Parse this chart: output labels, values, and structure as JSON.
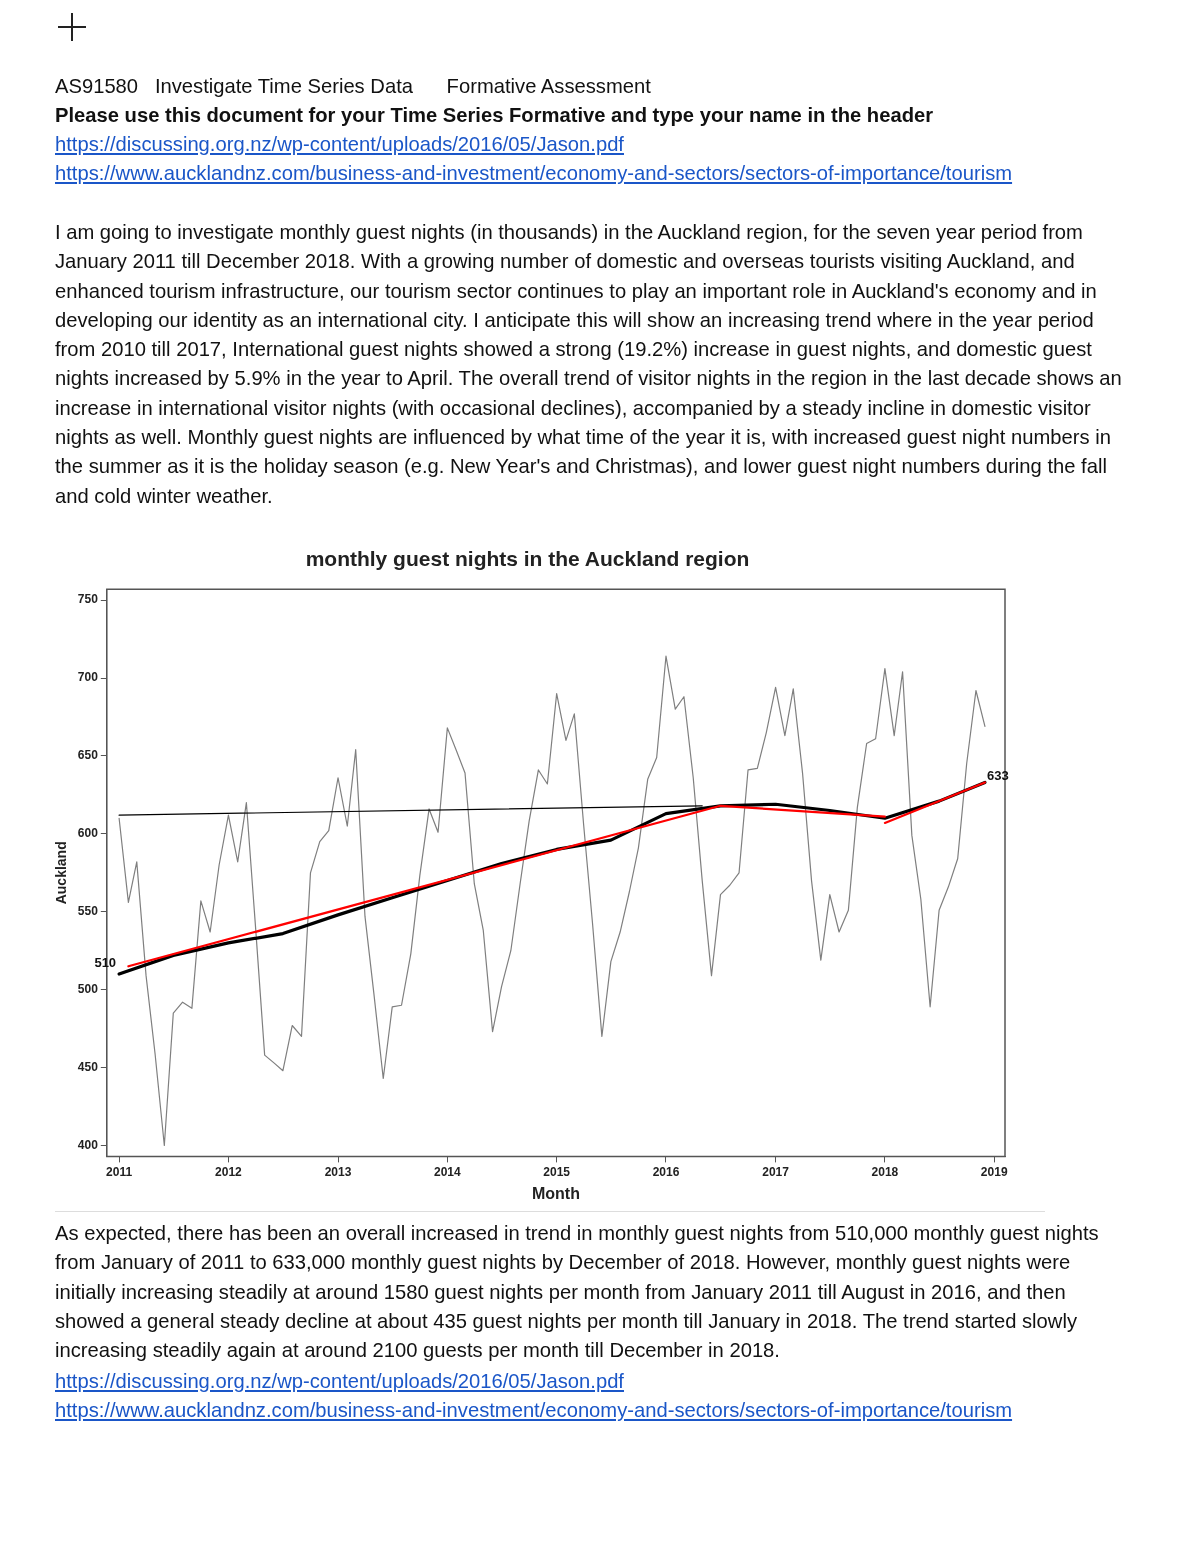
{
  "chart_data": {
    "type": "line",
    "title": "monthly guest nights in the Auckland region",
    "xlabel": "Month",
    "ylabel": "Auckland",
    "xlim": [
      "2010-11-21",
      "2019-02-06"
    ],
    "xticks": [
      {
        "value": "2011-01-01",
        "label": "2011"
      },
      {
        "value": "2012-01-01",
        "label": "2012"
      },
      {
        "value": "2013-01-01",
        "label": "2013"
      },
      {
        "value": "2014-01-01",
        "label": "2014"
      },
      {
        "value": "2015-01-01",
        "label": "2015"
      },
      {
        "value": "2016-01-01",
        "label": "2016"
      },
      {
        "value": "2017-01-01",
        "label": "2017"
      },
      {
        "value": "2018-01-01",
        "label": "2018"
      },
      {
        "value": "2019-01-01",
        "label": "2019"
      }
    ],
    "ylim": [
      393,
      757
    ],
    "yticks": [
      400,
      450,
      500,
      550,
      600,
      650,
      700,
      750
    ],
    "grid": false,
    "legend": false,
    "marker": "none",
    "line_style": "solid",
    "series": [
      {
        "color": "#7f7f7f",
        "x": [
          "2011-01",
          "2011-02",
          "2011-03",
          "2011-04",
          "2011-05",
          "2011-06",
          "2011-07",
          "2011-08",
          "2011-09",
          "2011-10",
          "2011-11",
          "2011-12",
          "2012-01",
          "2012-02",
          "2012-03",
          "2012-04",
          "2012-05",
          "2012-06",
          "2012-07",
          "2012-08",
          "2012-09",
          "2012-10",
          "2012-11",
          "2012-12",
          "2013-01",
          "2013-02",
          "2013-03",
          "2013-04",
          "2013-05",
          "2013-06",
          "2013-07",
          "2013-08",
          "2013-09",
          "2013-10",
          "2013-11",
          "2013-12",
          "2014-01",
          "2014-02",
          "2014-03",
          "2014-04",
          "2014-05",
          "2014-06",
          "2014-07",
          "2014-08",
          "2014-09",
          "2014-10",
          "2014-11",
          "2014-12",
          "2015-01",
          "2015-02",
          "2015-03",
          "2015-04",
          "2015-05",
          "2015-06",
          "2015-07",
          "2015-08",
          "2015-09",
          "2015-10",
          "2015-11",
          "2015-12",
          "2016-01",
          "2016-02",
          "2016-03",
          "2016-04",
          "2016-05",
          "2016-06",
          "2016-07",
          "2016-08",
          "2016-09",
          "2016-10",
          "2016-11",
          "2016-12",
          "2017-01",
          "2017-02",
          "2017-03",
          "2017-04",
          "2017-05",
          "2017-06",
          "2017-07",
          "2017-08",
          "2017-09",
          "2017-10",
          "2017-11",
          "2017-12",
          "2018-01",
          "2018-02",
          "2018-03",
          "2018-04",
          "2018-05",
          "2018-06",
          "2018-07",
          "2018-08",
          "2018-09",
          "2018-10",
          "2018-11",
          "2018-12"
        ],
        "values": [
          610,
          556,
          582,
          509,
          459,
          400,
          485,
          492,
          488,
          557,
          537,
          580,
          612,
          582,
          620,
          539,
          458,
          453,
          448,
          477,
          470,
          575,
          595,
          602,
          636,
          605,
          654,
          547,
          497,
          443,
          489,
          490,
          523,
          573,
          616,
          601,
          668,
          653,
          639,
          568,
          538,
          473,
          502,
          525,
          568,
          608,
          641,
          632,
          690,
          660,
          677,
          606,
          542,
          470,
          518,
          537,
          563,
          591,
          635,
          649,
          714,
          680,
          688,
          636,
          570,
          509,
          561,
          567,
          575,
          641,
          642,
          665,
          694,
          663,
          693,
          639,
          570,
          519,
          561,
          537,
          551,
          617,
          658,
          661,
          706,
          663,
          704,
          599,
          558,
          489,
          551,
          566,
          584,
          645,
          692,
          669
        ]
      },
      {
        "color": "#000000",
        "x": [
          "2011-01",
          "2011-07",
          "2012-01",
          "2012-07",
          "2013-01",
          "2013-07",
          "2014-01",
          "2014-07",
          "2015-01",
          "2015-07",
          "2016-01",
          "2016-07",
          "2017-01",
          "2017-07",
          "2018-01",
          "2018-07",
          "2018-12"
        ],
        "values": [
          510,
          522,
          530,
          536,
          548,
          559,
          570,
          581,
          590,
          596,
          613,
          618,
          619,
          615,
          610,
          621,
          633
        ]
      },
      {
        "color": "#ff0000",
        "x": [
          "2011-02",
          "2016-07",
          "2018-01"
        ],
        "values": [
          515,
          618,
          611
        ]
      },
      {
        "color": "#ff0000",
        "x": [
          "2018-01",
          "2018-12"
        ],
        "values": [
          607,
          633
        ]
      },
      {
        "color": "#000000",
        "x": [
          "2011-01",
          "2016-05"
        ],
        "values": [
          612,
          618
        ]
      }
    ],
    "annotations": [
      "AS91580   Investigate Time Series Data      Formative Assessment",
      "Please use this document for your Time Series Formative and type your name in the header",
      "https://discussing.org.nz/wp-content/uploads/2016/05/Jason.pdf",
      "https://www.aucklandnz.com/business-and-investment/economy-and-sectors/sectors-of-importance/tourism",
      "I am going to investigate monthly guest nights (in thousands) in the Auckland region, for the seven year period from January 2011 till December 2018. With a growing number of domestic and overseas tourists visiting Auckland, and enhanced tourism infrastructure, our tourism sector continues to play an important role in Auckland's economy and in developing our identity as an international city. I anticipate this will show an increasing trend where in the year period from 2010 till 2017, International guest nights showed a strong (19.2%) increase in guest nights, and domestic guest nights increased by 5.9% in the year to April. The overall trend of visitor nights in the region in the last decade shows an increase in international visitor nights (with occasional declines), accompanied by a steady incline in domestic visitor nights as well. Monthly guest nights are influenced by what time of the year it is, with increased guest night numbers in the summer as it is the holiday season (e.g. New Year's and Christmas), and lower guest night numbers during the fall and cold winter weather.",
      "As expected, there has been an overall increased in trend in monthly guest nights from 510,000 monthly guest nights from January of 2011 to 633,000 monthly guest nights by December of 2018. However, monthly guest nights were initially increasing steadily at around 1580 guest nights per month from January 2011 till August in 2016, and then showed a general steady decline at about 435 guest nights per month till January in 2018. The trend started slowly increasing steadily again at around 2100 guests per month till December in 2018.",
      "https://discussing.org.nz/wp-content/uploads/2016/05/Jason.pdf",
      "https://www.aucklandnz.com/business-and-investment/economy-and-sectors/sectors-of-importance/tourism",
      {
        "text": "510",
        "x": "2011-01",
        "y": 510
      },
      {
        "text": "633",
        "x": "2018-12",
        "y": 633
      }
    ]
  }
}
